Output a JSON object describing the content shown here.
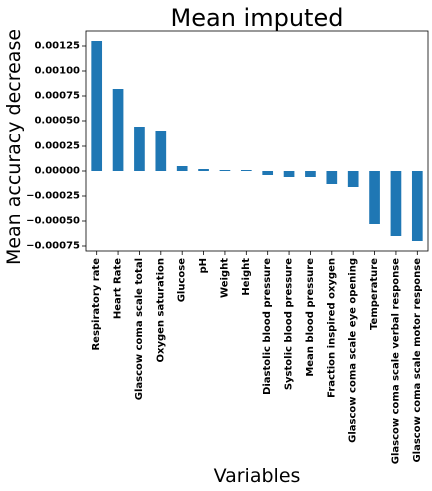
{
  "chart_data": {
    "type": "bar",
    "title": "Mean imputed",
    "xlabel": "Variables",
    "ylabel": "Mean accuracy decrease",
    "categories": [
      "Respiratory rate",
      "Heart Rate",
      "Glascow coma scale total",
      "Oxygen saturation",
      "Glucose",
      "pH",
      "Weight",
      "Height",
      "Diastolic blood pressure",
      "Systolic blood pressure",
      "Mean blood pressure",
      "Fraction inspired oxygen",
      "Glascow coma scale eye opening",
      "Temperature",
      "Glascow coma scale verbal response",
      "Glascow coma scale motor response"
    ],
    "values": [
      0.0013,
      0.00082,
      0.00044,
      0.0004,
      5e-05,
      2e-05,
      1e-05,
      1e-05,
      -4e-05,
      -6e-05,
      -6e-05,
      -0.00013,
      -0.00016,
      -0.00053,
      -0.00065,
      -0.0007
    ],
    "ylim": [
      -0.0008,
      0.0014
    ],
    "yticks": [
      -0.00075,
      -0.0005,
      -0.00025,
      0.0,
      0.00025,
      0.0005,
      0.00075,
      0.001,
      0.00125
    ],
    "ytick_labels": [
      "−0.00075",
      "−0.00050",
      "−0.00025",
      "0.00000",
      "0.00025",
      "0.00050",
      "0.00075",
      "0.00100",
      "0.00125"
    ],
    "bar_color": "#1f77b4",
    "grid": false,
    "legend": "none"
  }
}
